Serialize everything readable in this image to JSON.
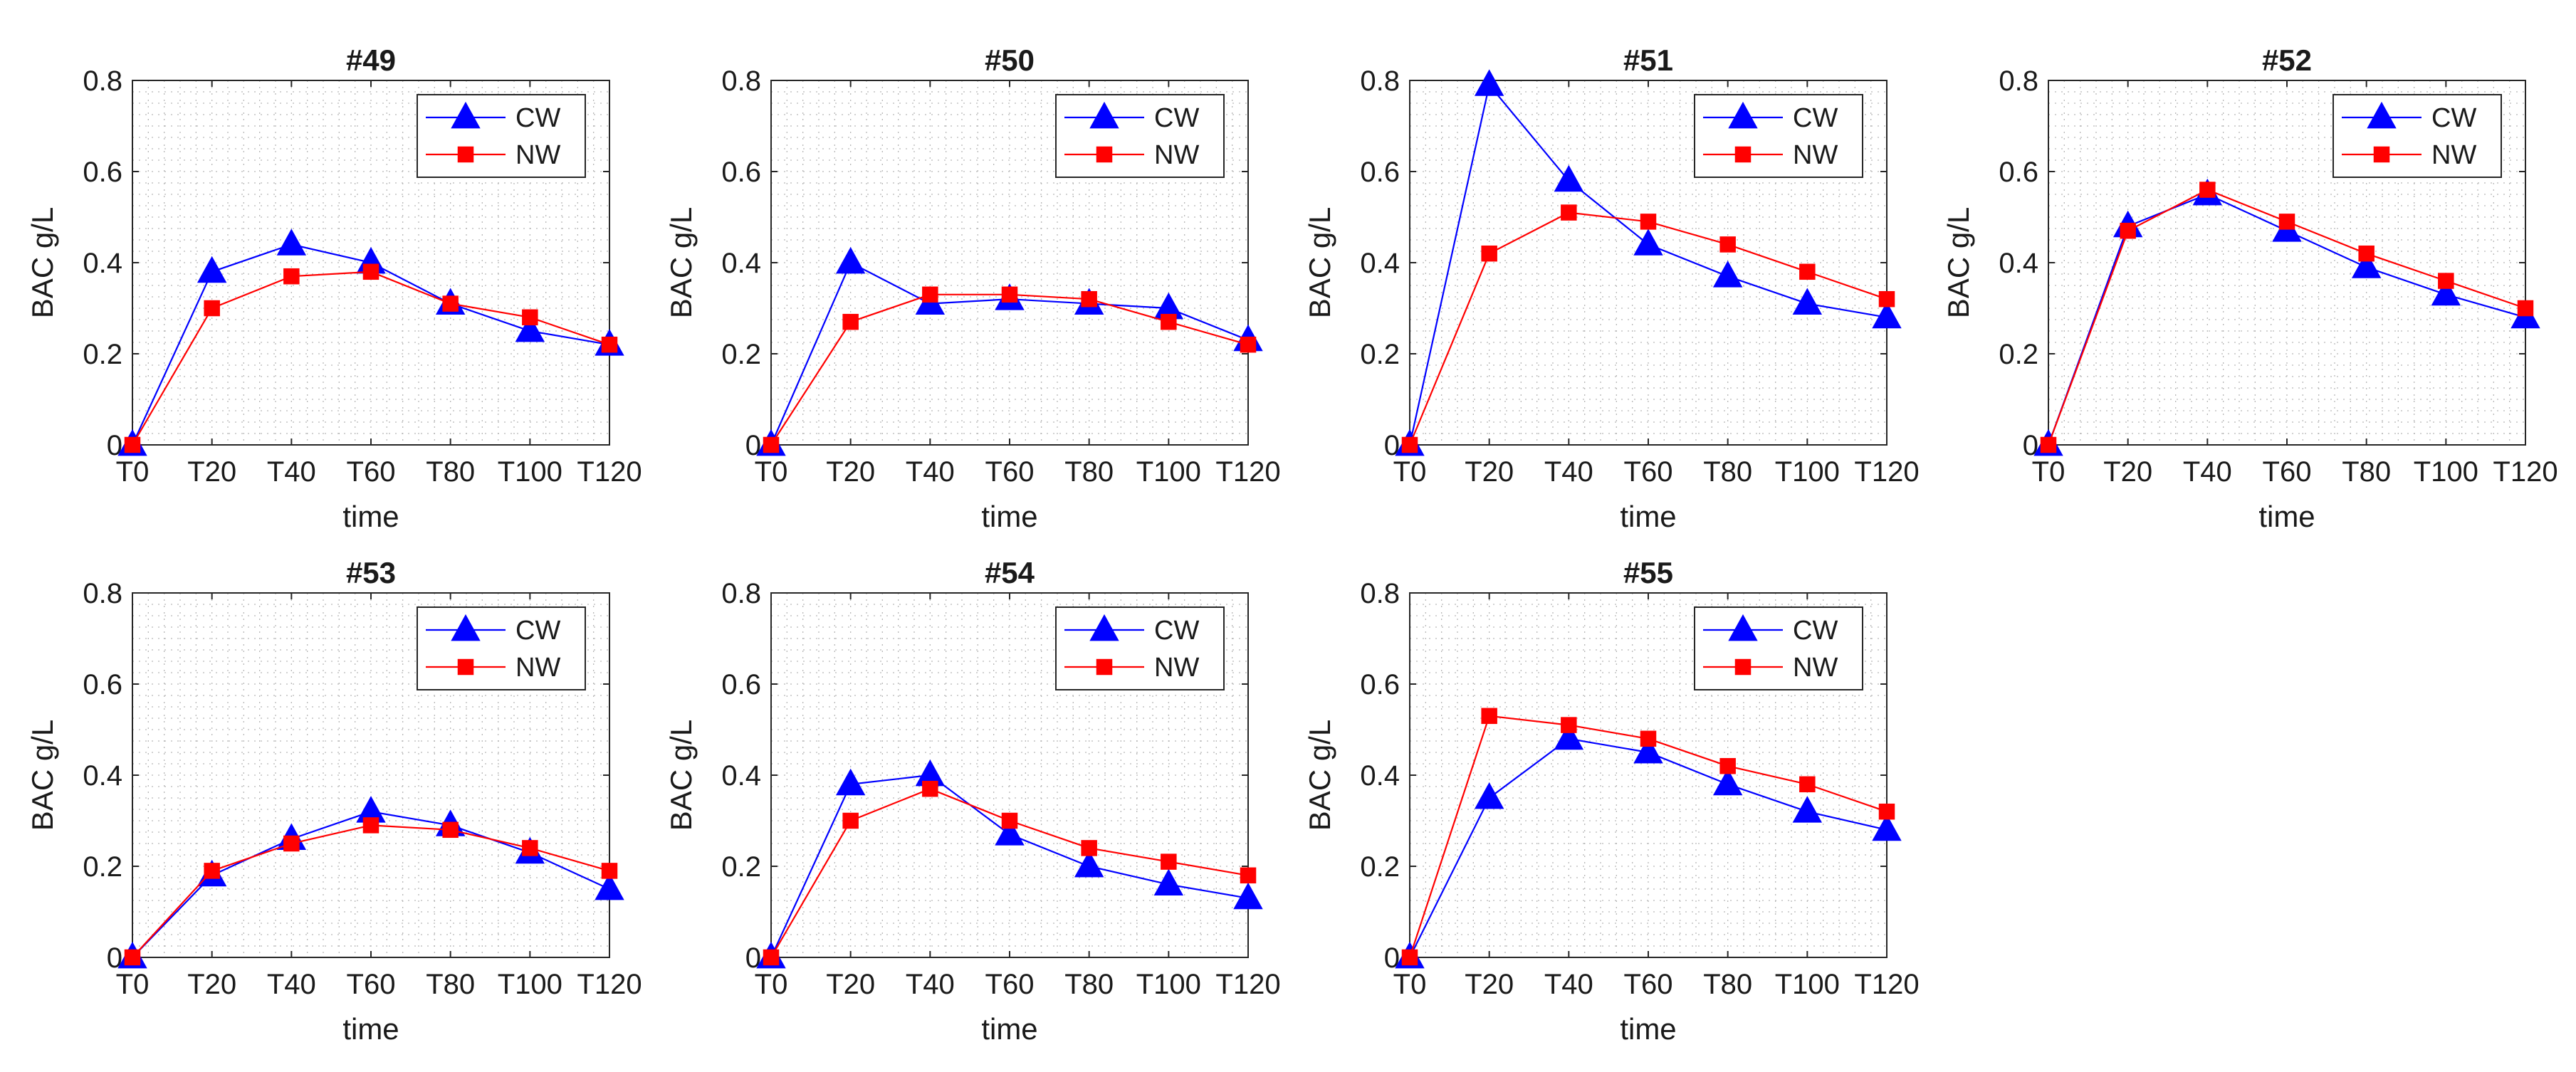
{
  "figure": {
    "layout": "2 rows x 4 columns (last slot empty)",
    "series_colors": {
      "CW": "#0000ff",
      "NW": "#ff0000"
    },
    "series_markers": {
      "CW": "triangle",
      "NW": "square"
    }
  },
  "chart_data": [
    {
      "type": "line",
      "title": "#49",
      "xlabel": "time",
      "ylabel": "BAC g/L",
      "categories": [
        "T0",
        "T20",
        "T40",
        "T60",
        "T80",
        "T100",
        "T120"
      ],
      "yticks": [
        "0",
        "0.2",
        "0.4",
        "0.6",
        "0.8"
      ],
      "ylim": [
        0,
        0.8
      ],
      "grid": "minor dotted",
      "legend": "top-right",
      "series": [
        {
          "name": "CW",
          "values": [
            0,
            0.38,
            0.44,
            0.4,
            0.31,
            0.25,
            0.22
          ]
        },
        {
          "name": "NW",
          "values": [
            0,
            0.3,
            0.37,
            0.38,
            0.31,
            0.28,
            0.22
          ]
        }
      ]
    },
    {
      "type": "line",
      "title": "#50",
      "xlabel": "time",
      "ylabel": "BAC g/L",
      "categories": [
        "T0",
        "T20",
        "T40",
        "T60",
        "T80",
        "T100",
        "T120"
      ],
      "yticks": [
        "0",
        "0.2",
        "0.4",
        "0.6",
        "0.8"
      ],
      "ylim": [
        0,
        0.8
      ],
      "grid": "minor dotted",
      "legend": "top-right",
      "series": [
        {
          "name": "CW",
          "values": [
            0,
            0.4,
            0.31,
            0.32,
            0.31,
            0.3,
            0.23
          ]
        },
        {
          "name": "NW",
          "values": [
            0,
            0.27,
            0.33,
            0.33,
            0.32,
            0.27,
            0.22
          ]
        }
      ]
    },
    {
      "type": "line",
      "title": "#51",
      "xlabel": "time",
      "ylabel": "BAC g/L",
      "categories": [
        "T0",
        "T20",
        "T40",
        "T60",
        "T80",
        "T100",
        "T120"
      ],
      "yticks": [
        "0",
        "0.2",
        "0.4",
        "0.6",
        "0.8"
      ],
      "ylim": [
        0,
        0.8
      ],
      "grid": "minor dotted",
      "legend": "top-right",
      "series": [
        {
          "name": "CW",
          "values": [
            0,
            0.79,
            0.58,
            0.44,
            0.37,
            0.31,
            0.28
          ]
        },
        {
          "name": "NW",
          "values": [
            0,
            0.42,
            0.51,
            0.49,
            0.44,
            0.38,
            0.32
          ]
        }
      ]
    },
    {
      "type": "line",
      "title": "#52",
      "xlabel": "time",
      "ylabel": "BAC g/L",
      "categories": [
        "T0",
        "T20",
        "T40",
        "T60",
        "T80",
        "T100",
        "T120"
      ],
      "yticks": [
        "0",
        "0.2",
        "0.4",
        "0.6",
        "0.8"
      ],
      "ylim": [
        0,
        0.8
      ],
      "grid": "minor dotted",
      "legend": "top-right",
      "series": [
        {
          "name": "CW",
          "values": [
            0,
            0.48,
            0.55,
            0.47,
            0.39,
            0.33,
            0.28
          ]
        },
        {
          "name": "NW",
          "values": [
            0,
            0.47,
            0.56,
            0.49,
            0.42,
            0.36,
            0.3
          ]
        }
      ]
    },
    {
      "type": "line",
      "title": "#53",
      "xlabel": "time",
      "ylabel": "BAC g/L",
      "categories": [
        "T0",
        "T20",
        "T40",
        "T60",
        "T80",
        "T100",
        "T120"
      ],
      "yticks": [
        "0",
        "0.2",
        "0.4",
        "0.6",
        "0.8"
      ],
      "ylim": [
        0,
        0.8
      ],
      "grid": "minor dotted",
      "legend": "top-right",
      "series": [
        {
          "name": "CW",
          "values": [
            0,
            0.18,
            0.26,
            0.32,
            0.29,
            0.23,
            0.15
          ]
        },
        {
          "name": "NW",
          "values": [
            0,
            0.19,
            0.25,
            0.29,
            0.28,
            0.24,
            0.19
          ]
        }
      ]
    },
    {
      "type": "line",
      "title": "#54",
      "xlabel": "time",
      "ylabel": "BAC g/L",
      "categories": [
        "T0",
        "T20",
        "T40",
        "T60",
        "T80",
        "T100",
        "T120"
      ],
      "yticks": [
        "0",
        "0.2",
        "0.4",
        "0.6",
        "0.8"
      ],
      "ylim": [
        0,
        0.8
      ],
      "grid": "minor dotted",
      "legend": "top-right",
      "series": [
        {
          "name": "CW",
          "values": [
            0,
            0.38,
            0.4,
            0.27,
            0.2,
            0.16,
            0.13
          ]
        },
        {
          "name": "NW",
          "values": [
            0,
            0.3,
            0.37,
            0.3,
            0.24,
            0.21,
            0.18
          ]
        }
      ]
    },
    {
      "type": "line",
      "title": "#55",
      "xlabel": "time",
      "ylabel": "BAC g/L",
      "categories": [
        "T0",
        "T20",
        "T40",
        "T60",
        "T80",
        "T100",
        "T120"
      ],
      "yticks": [
        "0",
        "0.2",
        "0.4",
        "0.6",
        "0.8"
      ],
      "ylim": [
        0,
        0.8
      ],
      "grid": "minor dotted",
      "legend": "top-right",
      "series": [
        {
          "name": "CW",
          "values": [
            0,
            0.35,
            0.48,
            0.45,
            0.38,
            0.32,
            0.28
          ]
        },
        {
          "name": "NW",
          "values": [
            0,
            0.53,
            0.51,
            0.48,
            0.42,
            0.38,
            0.32
          ]
        }
      ]
    }
  ]
}
